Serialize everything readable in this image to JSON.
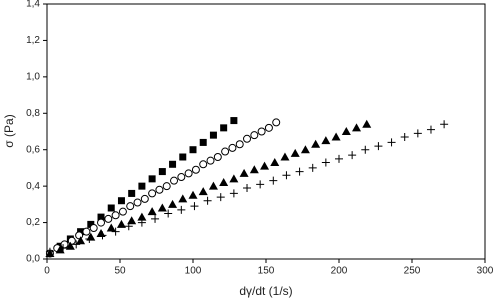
{
  "chart_data": {
    "type": "scatter",
    "xlabel": "dγ/dt (1/s)",
    "ylabel": "σ (Pa)",
    "xlim": [
      0,
      300
    ],
    "ylim": [
      0,
      1.4
    ],
    "xticks": [
      0,
      50,
      100,
      150,
      200,
      250,
      300
    ],
    "yticks": [
      {
        "value": 0,
        "label": "0,0"
      },
      {
        "value": 0.2,
        "label": "0,2"
      },
      {
        "value": 0.4,
        "label": "0,4"
      },
      {
        "value": 0.6,
        "label": "0,6"
      },
      {
        "value": 0.8,
        "label": "0,8"
      },
      {
        "value": 1.0,
        "label": "1,0"
      },
      {
        "value": 1.2,
        "label": "1,2"
      },
      {
        "value": 1.4,
        "label": "1,4"
      }
    ],
    "series": [
      {
        "marker": "square",
        "color": "#000000",
        "x": [
          2,
          9,
          16,
          23,
          30,
          37,
          44,
          51,
          58,
          65,
          72,
          79,
          86,
          93,
          100,
          107,
          114,
          121,
          128
        ],
        "values": [
          0.03,
          0.07,
          0.11,
          0.15,
          0.19,
          0.23,
          0.28,
          0.32,
          0.36,
          0.4,
          0.44,
          0.48,
          0.52,
          0.56,
          0.6,
          0.64,
          0.68,
          0.72,
          0.76
        ]
      },
      {
        "marker": "open-circle",
        "color": "#000000",
        "x": [
          2,
          7,
          12,
          17,
          22,
          27,
          32,
          37,
          42,
          47,
          52,
          57,
          62,
          67,
          72,
          77,
          82,
          87,
          92,
          97,
          102,
          107,
          112,
          117,
          122,
          127,
          132,
          137,
          142,
          147,
          152,
          157
        ],
        "values": [
          0.03,
          0.06,
          0.08,
          0.1,
          0.13,
          0.15,
          0.17,
          0.2,
          0.22,
          0.24,
          0.26,
          0.29,
          0.31,
          0.33,
          0.36,
          0.38,
          0.4,
          0.43,
          0.45,
          0.47,
          0.49,
          0.52,
          0.54,
          0.56,
          0.59,
          0.61,
          0.63,
          0.66,
          0.68,
          0.7,
          0.72,
          0.75
        ]
      },
      {
        "marker": "triangle",
        "color": "#000000",
        "x": [
          2,
          9,
          16,
          23,
          30,
          37,
          44,
          51,
          58,
          65,
          72,
          79,
          86,
          93,
          100,
          107,
          114,
          121,
          128,
          135,
          142,
          149,
          156,
          163,
          170,
          177,
          184,
          191,
          198,
          205,
          212,
          219
        ],
        "values": [
          0.03,
          0.05,
          0.07,
          0.1,
          0.12,
          0.14,
          0.17,
          0.19,
          0.21,
          0.23,
          0.26,
          0.28,
          0.3,
          0.33,
          0.35,
          0.37,
          0.4,
          0.42,
          0.44,
          0.47,
          0.49,
          0.51,
          0.53,
          0.56,
          0.58,
          0.6,
          0.63,
          0.65,
          0.67,
          0.7,
          0.72,
          0.74
        ]
      },
      {
        "marker": "plus",
        "color": "#000000",
        "x": [
          2,
          11,
          20,
          29,
          38,
          47,
          56,
          65,
          74,
          83,
          92,
          101,
          110,
          119,
          128,
          137,
          146,
          155,
          164,
          173,
          182,
          191,
          200,
          209,
          218,
          227,
          236,
          245,
          254,
          263,
          272
        ],
        "values": [
          0.04,
          0.06,
          0.08,
          0.11,
          0.13,
          0.15,
          0.18,
          0.2,
          0.22,
          0.25,
          0.27,
          0.29,
          0.32,
          0.34,
          0.36,
          0.39,
          0.41,
          0.43,
          0.46,
          0.48,
          0.5,
          0.53,
          0.55,
          0.57,
          0.6,
          0.62,
          0.64,
          0.67,
          0.69,
          0.71,
          0.74
        ]
      }
    ]
  }
}
